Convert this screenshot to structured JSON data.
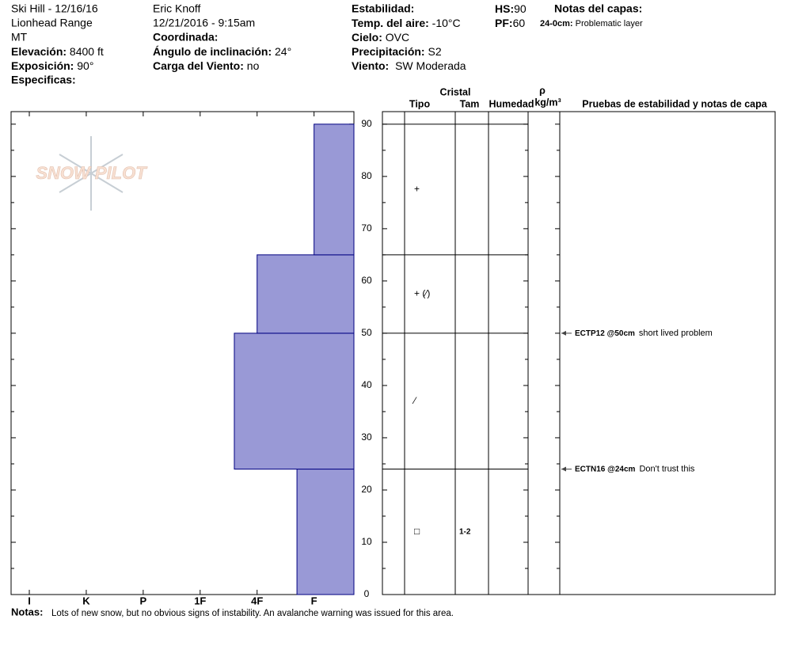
{
  "header": {
    "location": "Ski Hill - 12/16/16",
    "range": "Lionhead Range",
    "state": "MT",
    "elevation": {
      "label": "Elevación:",
      "value": "8400 ft"
    },
    "aspect": {
      "label": "Exposición:",
      "value": "90°"
    },
    "specifics": {
      "label": "Especificas:"
    },
    "observer": "Eric Knoff",
    "datetime": "12/21/2016 - 9:15am",
    "coordinates": {
      "label": "Coordinada:"
    },
    "slope": {
      "label": "Ángulo de inclinación:",
      "value": "24°"
    },
    "wind_loading": {
      "label": "Carga del Viento:",
      "value": "no"
    },
    "stability": {
      "label": "Estabilidad:"
    },
    "air_temp": {
      "label": "Temp. del aire:",
      "value": "-10°C"
    },
    "sky": {
      "label": "Cielo:",
      "value": "OVC"
    },
    "precip": {
      "label": "Precipitación:",
      "value": "S2"
    },
    "wind": {
      "label": "Viento:",
      "value": "SW Moderada"
    },
    "hs": {
      "label": "HS:",
      "value": "90"
    },
    "pf": {
      "label": "PF:",
      "value": "60"
    },
    "layer_notes": {
      "label": "Notas del capas:",
      "items": [
        {
          "range": "24-0cm:",
          "text": "Problematic layer"
        }
      ]
    }
  },
  "logo": "SNOW PILOT",
  "chart_data": {
    "type": "bar",
    "ylim": [
      0,
      92.4
    ],
    "yticks": [
      0,
      10,
      20,
      30,
      40,
      50,
      60,
      70,
      80,
      90
    ],
    "yminorticks": [
      5,
      15,
      25,
      35,
      45,
      55,
      65,
      75,
      85
    ],
    "xlim": [
      6.32,
      0.3
    ],
    "xticks": [
      {
        "value": 6,
        "label": "I"
      },
      {
        "value": 5,
        "label": "K"
      },
      {
        "value": 4,
        "label": "P"
      },
      {
        "value": 3,
        "label": "1F"
      },
      {
        "value": 2,
        "label": "4F"
      },
      {
        "value": 1,
        "label": "F"
      }
    ],
    "color": "#9999d6",
    "layers": [
      {
        "bottom": 0,
        "top": 24,
        "hardness": 1.3,
        "grain_type": "□",
        "grain_size": "1-2"
      },
      {
        "bottom": 24,
        "top": 50,
        "hardness": 2.4,
        "grain_type": "⁄"
      },
      {
        "bottom": 50,
        "top": 65,
        "hardness": 2,
        "grain_type": "+ (⁄)"
      },
      {
        "bottom": 65,
        "top": 90,
        "hardness": 1,
        "grain_type": "+"
      }
    ],
    "table_headers": {
      "crystal": "Cristal",
      "type": "Tipo",
      "size": "Tam",
      "moisture": "Humedad",
      "rho": "ρ",
      "density_unit": "kg/m³",
      "tests": "Pruebas de estabilidad y notas de capa"
    },
    "tests": [
      {
        "depth": 50,
        "label": "ECTP12 @50cm",
        "note": "short lived problem"
      },
      {
        "depth": 24,
        "label": "ECTN16 @24cm",
        "note": "Don't trust this"
      }
    ]
  },
  "notes": {
    "label": "Notas:",
    "text": "Lots of new snow, but no obvious signs of instability. An avalanche warning was issued for this area."
  }
}
